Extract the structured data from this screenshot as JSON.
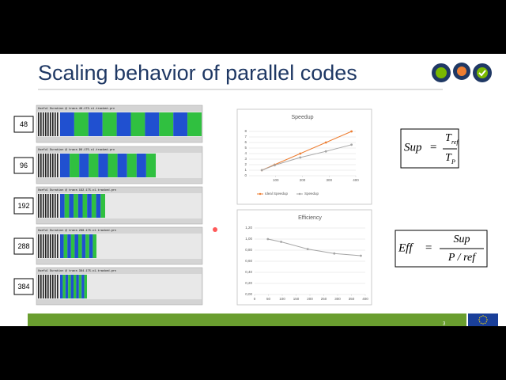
{
  "slide": {
    "title": "Scaling behavior of parallel codes",
    "page_number": "3"
  },
  "traces": [
    {
      "label": "48",
      "title": "Useful Duration @ trace.48.173.c1.tracked.prv"
    },
    {
      "label": "96",
      "title": "Useful Duration @ trace.96.175.c1.tracked.prv"
    },
    {
      "label": "192",
      "title": "Useful Duration @ trace.192.175.c1.tracked.prv"
    },
    {
      "label": "288",
      "title": "Useful Duration @ trace.288.175.c1.tracked.prv"
    },
    {
      "label": "384",
      "title": "Useful Duration @ trace.384.175.c1.tracked.prv"
    }
  ],
  "formulas": {
    "speedup": {
      "lhs": "Sup",
      "eq": "=",
      "num": "T",
      "num_sub": "ref",
      "den": "T",
      "den_sub": "P"
    },
    "efficiency": {
      "lhs": "Eff",
      "eq": "=",
      "num": "Sup",
      "den": "P  /  ref"
    }
  },
  "chart_data": [
    {
      "type": "line",
      "title": "Speedup",
      "x": [
        48,
        96,
        192,
        288,
        384
      ],
      "xlim": [
        0,
        400
      ],
      "xticks": [
        100,
        200,
        300,
        400
      ],
      "ylim": [
        0,
        8
      ],
      "yticks": [
        0,
        1,
        2,
        3,
        4,
        5,
        6,
        7,
        8
      ],
      "grid": true,
      "legend": "bottom",
      "series": [
        {
          "name": "Ideal Speedup",
          "color": "#ed7d31",
          "values": [
            1,
            2,
            4,
            6,
            8
          ]
        },
        {
          "name": "Speedup",
          "color": "#a5a5a5",
          "values": [
            1,
            1.9,
            3.3,
            4.4,
            5.6
          ]
        }
      ]
    },
    {
      "type": "line",
      "title": "Efficiency",
      "x": [
        48,
        96,
        192,
        288,
        384
      ],
      "xlim": [
        0,
        400
      ],
      "xticks": [
        0,
        50,
        100,
        150,
        200,
        250,
        300,
        350,
        400
      ],
      "ylim": [
        0,
        1.2
      ],
      "yticks": [
        {
          "value": 0,
          "label": "0,00"
        },
        {
          "value": 0.2,
          "label": "0,20"
        },
        {
          "value": 0.4,
          "label": "0,40"
        },
        {
          "value": 0.6,
          "label": "0,60"
        },
        {
          "value": 0.8,
          "label": "0,80"
        },
        {
          "value": 1,
          "label": "1,00"
        },
        {
          "value": 1.2,
          "label": "1,20"
        }
      ],
      "grid": true,
      "series": [
        {
          "color": "#a5a5a5",
          "values": [
            1,
            0.95,
            0.82,
            0.74,
            0.7
          ]
        }
      ]
    }
  ]
}
